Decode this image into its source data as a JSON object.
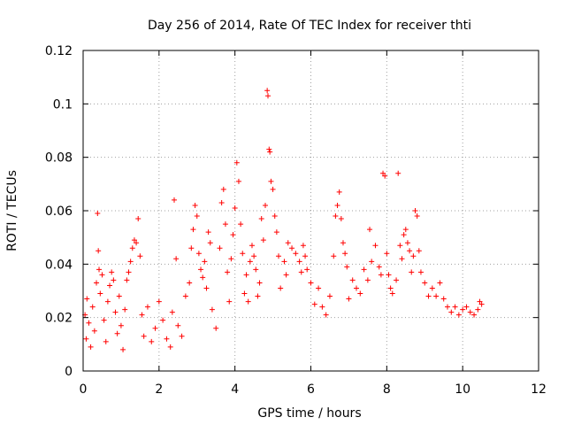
{
  "chart_data": {
    "type": "scatter",
    "title": "Day 256 of 2014, Rate Of TEC Index for receiver thti",
    "xlabel": "GPS time / hours",
    "ylabel": "ROTI / TECUs",
    "xlim": [
      0,
      12
    ],
    "ylim": [
      0,
      0.12
    ],
    "xticks": [
      0,
      2,
      4,
      6,
      8,
      10,
      12
    ],
    "xtick_labels": [
      "0",
      "2",
      "4",
      "6",
      "8",
      "10",
      "12"
    ],
    "yticks": [
      0,
      0.02,
      0.04,
      0.06,
      0.08,
      0.1,
      0.12
    ],
    "ytick_labels": [
      "0",
      "0.02",
      "0.04",
      "0.06",
      "0.08",
      "0.1",
      "0.12"
    ],
    "grid": true,
    "marker": "plus",
    "color": "#ff0000",
    "series": [
      {
        "name": "ROTI",
        "points": [
          [
            0.05,
            0.021
          ],
          [
            0.08,
            0.012
          ],
          [
            0.1,
            0.027
          ],
          [
            0.15,
            0.018
          ],
          [
            0.2,
            0.009
          ],
          [
            0.25,
            0.024
          ],
          [
            0.3,
            0.015
          ],
          [
            0.35,
            0.033
          ],
          [
            0.38,
            0.059
          ],
          [
            0.4,
            0.045
          ],
          [
            0.42,
            0.038
          ],
          [
            0.45,
            0.029
          ],
          [
            0.5,
            0.036
          ],
          [
            0.55,
            0.019
          ],
          [
            0.6,
            0.011
          ],
          [
            0.65,
            0.026
          ],
          [
            0.7,
            0.032
          ],
          [
            0.75,
            0.037
          ],
          [
            0.8,
            0.034
          ],
          [
            0.85,
            0.022
          ],
          [
            0.9,
            0.014
          ],
          [
            0.95,
            0.028
          ],
          [
            1.0,
            0.017
          ],
          [
            1.05,
            0.008
          ],
          [
            1.1,
            0.023
          ],
          [
            1.15,
            0.034
          ],
          [
            1.2,
            0.037
          ],
          [
            1.25,
            0.041
          ],
          [
            1.3,
            0.046
          ],
          [
            1.35,
            0.049
          ],
          [
            1.4,
            0.048
          ],
          [
            1.45,
            0.057
          ],
          [
            1.5,
            0.043
          ],
          [
            1.55,
            0.021
          ],
          [
            1.6,
            0.013
          ],
          [
            1.7,
            0.024
          ],
          [
            1.8,
            0.011
          ],
          [
            1.9,
            0.016
          ],
          [
            2.0,
            0.026
          ],
          [
            2.1,
            0.019
          ],
          [
            2.2,
            0.012
          ],
          [
            2.3,
            0.009
          ],
          [
            2.35,
            0.022
          ],
          [
            2.4,
            0.064
          ],
          [
            2.45,
            0.042
          ],
          [
            2.5,
            0.017
          ],
          [
            2.6,
            0.013
          ],
          [
            2.7,
            0.028
          ],
          [
            2.8,
            0.033
          ],
          [
            2.85,
            0.046
          ],
          [
            2.9,
            0.053
          ],
          [
            2.95,
            0.062
          ],
          [
            3.0,
            0.058
          ],
          [
            3.05,
            0.044
          ],
          [
            3.1,
            0.038
          ],
          [
            3.15,
            0.035
          ],
          [
            3.2,
            0.041
          ],
          [
            3.25,
            0.031
          ],
          [
            3.3,
            0.052
          ],
          [
            3.35,
            0.048
          ],
          [
            3.4,
            0.023
          ],
          [
            3.5,
            0.016
          ],
          [
            3.6,
            0.046
          ],
          [
            3.65,
            0.063
          ],
          [
            3.7,
            0.068
          ],
          [
            3.75,
            0.055
          ],
          [
            3.8,
            0.037
          ],
          [
            3.85,
            0.026
          ],
          [
            3.9,
            0.042
          ],
          [
            3.95,
            0.051
          ],
          [
            4.0,
            0.061
          ],
          [
            4.05,
            0.078
          ],
          [
            4.1,
            0.071
          ],
          [
            4.15,
            0.055
          ],
          [
            4.2,
            0.044
          ],
          [
            4.25,
            0.029
          ],
          [
            4.3,
            0.036
          ],
          [
            4.35,
            0.026
          ],
          [
            4.4,
            0.041
          ],
          [
            4.45,
            0.047
          ],
          [
            4.5,
            0.043
          ],
          [
            4.55,
            0.038
          ],
          [
            4.6,
            0.028
          ],
          [
            4.65,
            0.033
          ],
          [
            4.7,
            0.057
          ],
          [
            4.75,
            0.049
          ],
          [
            4.8,
            0.062
          ],
          [
            4.85,
            0.105
          ],
          [
            4.87,
            0.103
          ],
          [
            4.9,
            0.083
          ],
          [
            4.92,
            0.082
          ],
          [
            4.95,
            0.071
          ],
          [
            5.0,
            0.068
          ],
          [
            5.05,
            0.058
          ],
          [
            5.1,
            0.052
          ],
          [
            5.15,
            0.043
          ],
          [
            5.2,
            0.031
          ],
          [
            5.3,
            0.041
          ],
          [
            5.35,
            0.036
          ],
          [
            5.4,
            0.048
          ],
          [
            5.5,
            0.046
          ],
          [
            5.6,
            0.044
          ],
          [
            5.7,
            0.041
          ],
          [
            5.75,
            0.037
          ],
          [
            5.8,
            0.047
          ],
          [
            5.85,
            0.043
          ],
          [
            5.9,
            0.038
          ],
          [
            6.0,
            0.033
          ],
          [
            6.1,
            0.025
          ],
          [
            6.2,
            0.031
          ],
          [
            6.3,
            0.024
          ],
          [
            6.4,
            0.021
          ],
          [
            6.5,
            0.028
          ],
          [
            6.6,
            0.043
          ],
          [
            6.65,
            0.058
          ],
          [
            6.7,
            0.062
          ],
          [
            6.75,
            0.067
          ],
          [
            6.8,
            0.057
          ],
          [
            6.85,
            0.048
          ],
          [
            6.9,
            0.044
          ],
          [
            6.95,
            0.039
          ],
          [
            7.0,
            0.027
          ],
          [
            7.1,
            0.034
          ],
          [
            7.2,
            0.031
          ],
          [
            7.3,
            0.029
          ],
          [
            7.4,
            0.038
          ],
          [
            7.5,
            0.034
          ],
          [
            7.55,
            0.053
          ],
          [
            7.6,
            0.041
          ],
          [
            7.7,
            0.047
          ],
          [
            7.8,
            0.039
          ],
          [
            7.85,
            0.036
          ],
          [
            7.9,
            0.074
          ],
          [
            7.95,
            0.073
          ],
          [
            8.0,
            0.044
          ],
          [
            8.05,
            0.036
          ],
          [
            8.1,
            0.031
          ],
          [
            8.15,
            0.029
          ],
          [
            8.25,
            0.034
          ],
          [
            8.3,
            0.074
          ],
          [
            8.35,
            0.047
          ],
          [
            8.4,
            0.042
          ],
          [
            8.45,
            0.051
          ],
          [
            8.5,
            0.053
          ],
          [
            8.55,
            0.048
          ],
          [
            8.6,
            0.045
          ],
          [
            8.65,
            0.037
          ],
          [
            8.7,
            0.043
          ],
          [
            8.75,
            0.06
          ],
          [
            8.8,
            0.058
          ],
          [
            8.85,
            0.045
          ],
          [
            8.9,
            0.037
          ],
          [
            9.0,
            0.033
          ],
          [
            9.1,
            0.028
          ],
          [
            9.2,
            0.031
          ],
          [
            9.3,
            0.028
          ],
          [
            9.4,
            0.033
          ],
          [
            9.5,
            0.027
          ],
          [
            9.6,
            0.024
          ],
          [
            9.7,
            0.022
          ],
          [
            9.8,
            0.024
          ],
          [
            9.9,
            0.021
          ],
          [
            10.0,
            0.023
          ],
          [
            10.1,
            0.024
          ],
          [
            10.2,
            0.022
          ],
          [
            10.3,
            0.021
          ],
          [
            10.4,
            0.023
          ],
          [
            10.45,
            0.026
          ],
          [
            10.5,
            0.025
          ]
        ]
      }
    ]
  }
}
